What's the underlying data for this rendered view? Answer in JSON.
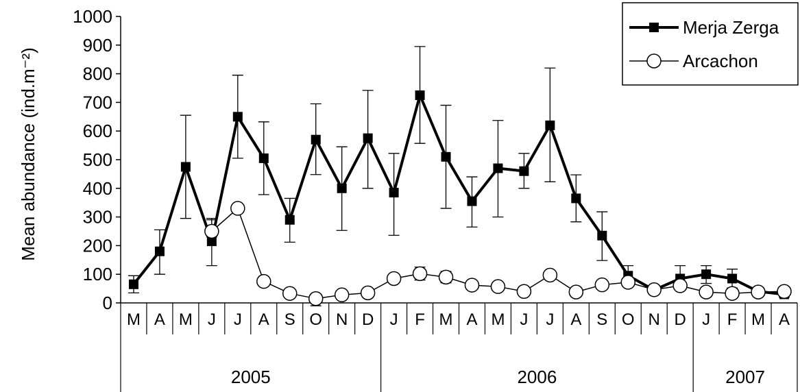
{
  "chart_data": {
    "type": "line",
    "ylabel": "Mean abundance (ind.m⁻²)",
    "ylim": [
      0,
      1000
    ],
    "yticks": [
      0,
      100,
      200,
      300,
      400,
      500,
      600,
      700,
      800,
      900,
      1000
    ],
    "grid": false,
    "legend_position": "top-right",
    "categories": [
      "M",
      "A",
      "M",
      "J",
      "J",
      "A",
      "S",
      "O",
      "N",
      "D",
      "J",
      "F",
      "M",
      "A",
      "M",
      "J",
      "J",
      "A",
      "S",
      "O",
      "N",
      "D",
      "J",
      "F",
      "M",
      "A"
    ],
    "year_groups": [
      {
        "label": "2005",
        "start": 0,
        "end": 9
      },
      {
        "label": "2006",
        "start": 10,
        "end": 21
      },
      {
        "label": "2007",
        "start": 22,
        "end": 25
      }
    ],
    "series": [
      {
        "name": "Merja Zerga",
        "marker": "filled-square",
        "color": "#000000",
        "values": [
          65,
          180,
          475,
          215,
          650,
          505,
          290,
          570,
          400,
          575,
          385,
          725,
          510,
          355,
          470,
          460,
          620,
          365,
          235,
          95,
          45,
          85,
          100,
          85,
          40,
          30
        ],
        "error_upper": [
          95,
          255,
          655,
          295,
          795,
          632,
          365,
          695,
          545,
          742,
          522,
          895,
          690,
          440,
          637,
          522,
          820,
          447,
          318,
          130,
          55,
          130,
          130,
          118,
          50,
          40
        ],
        "error_lower": [
          35,
          100,
          295,
          130,
          505,
          378,
          212,
          448,
          253,
          400,
          236,
          557,
          330,
          265,
          300,
          400,
          423,
          283,
          148,
          60,
          30,
          50,
          68,
          52,
          30,
          20
        ]
      },
      {
        "name": "Arcachon",
        "marker": "open-circle",
        "color": "#000000",
        "values": [
          null,
          null,
          null,
          250,
          330,
          75,
          33,
          15,
          28,
          35,
          85,
          102,
          90,
          62,
          57,
          40,
          97,
          38,
          63,
          72,
          46,
          60,
          38,
          33,
          38,
          40
        ],
        "error_upper": [
          null,
          null,
          null,
          290,
          345,
          90,
          45,
          30,
          42,
          50,
          100,
          125,
          110,
          75,
          70,
          52,
          110,
          52,
          72,
          85,
          55,
          72,
          48,
          40,
          44,
          46
        ],
        "error_lower": [
          null,
          null,
          null,
          230,
          315,
          62,
          25,
          -10,
          15,
          20,
          70,
          80,
          70,
          50,
          45,
          28,
          85,
          25,
          55,
          60,
          38,
          48,
          28,
          25,
          32,
          34
        ]
      }
    ]
  }
}
